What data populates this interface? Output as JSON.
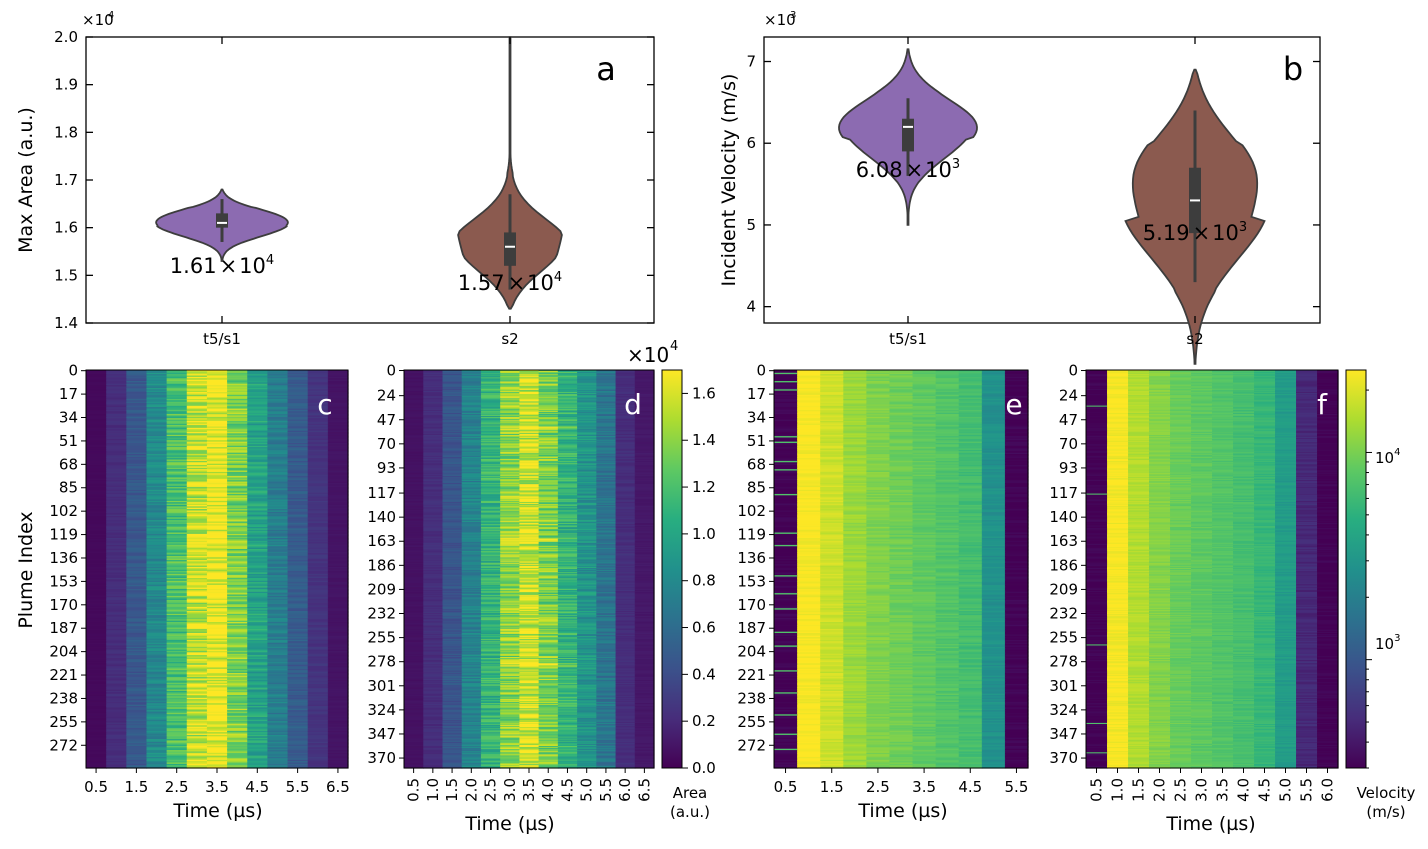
{
  "panel_a": {
    "letter": "a",
    "ylabel": "Max Area (a.u.)",
    "exponent_prefix": "×10",
    "exponent_power": "4",
    "ytick_labels": [
      "2.0",
      "1.9",
      "1.8",
      "1.7",
      "1.6",
      "1.5",
      "1.4"
    ],
    "xtick_labels": [
      "t5/s1",
      "s2"
    ],
    "annotations": [
      {
        "mantissa": "1.61",
        "times": "×",
        "base": "10",
        "power": "4"
      },
      {
        "mantissa": "1.57",
        "times": "×",
        "base": "10",
        "power": "4"
      }
    ]
  },
  "panel_b": {
    "letter": "b",
    "ylabel": "Incident Velocity (m/s)",
    "exponent_prefix": "×10",
    "exponent_power": "3",
    "ytick_labels": [
      "7",
      "6",
      "5",
      "4"
    ],
    "xtick_labels": [
      "t5/s1",
      "s2"
    ],
    "annotations": [
      {
        "mantissa": "6.08",
        "times": "×",
        "base": "10",
        "power": "3"
      },
      {
        "mantissa": "5.19",
        "times": "×",
        "base": "10",
        "power": "3"
      }
    ]
  },
  "panel_c": {
    "letter": "c",
    "ylabel": "Plume Index",
    "xlabel": "Time (µs)",
    "ytick_labels": [
      "0",
      "17",
      "34",
      "51",
      "68",
      "85",
      "102",
      "119",
      "136",
      "153",
      "170",
      "187",
      "204",
      "221",
      "238",
      "255",
      "272"
    ],
    "xtick_labels": [
      "0.5",
      "1.5",
      "2.5",
      "3.5",
      "4.5",
      "5.5",
      "6.5"
    ]
  },
  "panel_d": {
    "letter": "d",
    "xlabel": "Time (µs)",
    "ytick_labels": [
      "0",
      "24",
      "47",
      "70",
      "93",
      "117",
      "140",
      "163",
      "186",
      "209",
      "232",
      "255",
      "278",
      "301",
      "324",
      "347",
      "370"
    ],
    "xtick_labels": [
      "0.5",
      "1.0",
      "1.5",
      "2.0",
      "2.5",
      "3.0",
      "3.5",
      "4.0",
      "4.5",
      "5.0",
      "5.5",
      "6.0",
      "6.5"
    ]
  },
  "panel_e": {
    "letter": "e",
    "xlabel": "Time (µs)",
    "ytick_labels": [
      "0",
      "17",
      "34",
      "51",
      "68",
      "85",
      "102",
      "119",
      "136",
      "153",
      "170",
      "187",
      "204",
      "221",
      "238",
      "255",
      "272"
    ],
    "xtick_labels": [
      "0.5",
      "1.5",
      "2.5",
      "3.5",
      "4.5",
      "5.5"
    ]
  },
  "panel_f": {
    "letter": "f",
    "xlabel": "Time (µs)",
    "ytick_labels": [
      "0",
      "24",
      "47",
      "70",
      "93",
      "117",
      "140",
      "163",
      "186",
      "209",
      "232",
      "255",
      "278",
      "301",
      "324",
      "347",
      "370"
    ],
    "xtick_labels": [
      "0.5",
      "1.0",
      "1.5",
      "2.0",
      "2.5",
      "3.0",
      "3.5",
      "4.0",
      "4.5",
      "5.0",
      "5.5",
      "6.0"
    ]
  },
  "colorbar_area": {
    "multiplier": "×10",
    "multiplier_power": "4",
    "tick_labels": [
      "1.6",
      "1.4",
      "1.2",
      "1.0",
      "0.8",
      "0.6",
      "0.4",
      "0.2",
      "0.0"
    ],
    "title_line1": "Area",
    "title_line2": "(a.u.)"
  },
  "colorbar_velocity": {
    "tick_base": "10",
    "tick_powers": [
      "4",
      "3"
    ],
    "title_line1": "Velocity",
    "title_line2": "(m/s)"
  },
  "colors": {
    "violin_t5s1": "#8c6bb1",
    "violin_s2": "#8b5a4f",
    "violin_edge": "#3d3d3d",
    "box": "#3d3d3d",
    "median": "#ffffff",
    "viridis": [
      "#440154",
      "#472d7b",
      "#3b528b",
      "#2c728e",
      "#21918c",
      "#28ae80",
      "#5ec962",
      "#addc30",
      "#fde725"
    ]
  },
  "chart_data": [
    {
      "type": "violin",
      "panel": "a",
      "categories": [
        "t5/s1",
        "s2"
      ],
      "ylim": [
        14000,
        20000
      ],
      "series": [
        {
          "category": "t5/s1",
          "median": 16100,
          "q1": 16000,
          "q3": 16300,
          "whisker_low": 15700,
          "whisker_high": 16600,
          "min": 15300,
          "max": 16800,
          "mean_label": 16100
        },
        {
          "category": "s2",
          "median": 15600,
          "q1": 15200,
          "q3": 15900,
          "whisker_low": 14700,
          "whisker_high": 16700,
          "min": 14300,
          "max": 20000,
          "mean_label": 15700
        }
      ]
    },
    {
      "type": "violin",
      "panel": "b",
      "categories": [
        "t5/s1",
        "s2"
      ],
      "ylim": [
        3800,
        7300
      ],
      "series": [
        {
          "category": "t5/s1",
          "median": 6200,
          "q1": 5900,
          "q3": 6300,
          "whisker_low": 5600,
          "whisker_high": 6550,
          "min": 5000,
          "max": 7150,
          "mean_label": 6080
        },
        {
          "category": "s2",
          "median": 5300,
          "q1": 4900,
          "q3": 5700,
          "whisker_low": 4300,
          "whisker_high": 6400,
          "min": 3300,
          "max": 6900,
          "mean_label": 5190
        }
      ]
    },
    {
      "type": "heatmap",
      "panel": "c",
      "rows": 289,
      "time_us": [
        0.5,
        1.0,
        1.5,
        2.0,
        2.5,
        3.0,
        3.5,
        4.0,
        4.5,
        5.0,
        5.5,
        6.0,
        6.5
      ],
      "column_values": [
        400,
        2200,
        4700,
        8000,
        12000,
        15500,
        17000,
        13600,
        9800,
        7200,
        4900,
        2500,
        900
      ],
      "value_range": [
        0,
        17000
      ],
      "color_scale": "linear"
    },
    {
      "type": "heatmap",
      "panel": "d",
      "rows": 380,
      "time_us": [
        0.5,
        1.0,
        1.5,
        2.0,
        2.5,
        3.0,
        3.5,
        4.0,
        4.5,
        5.0,
        5.5,
        6.0,
        6.5
      ],
      "column_values": [
        800,
        2200,
        4500,
        7500,
        11000,
        14000,
        15800,
        13500,
        11000,
        8800,
        6600,
        2200,
        1100
      ],
      "value_range": [
        0,
        17000
      ],
      "color_scale": "linear"
    },
    {
      "type": "heatmap",
      "panel": "e",
      "rows": 289,
      "time_us": [
        0.5,
        1.0,
        1.5,
        2.0,
        2.5,
        3.0,
        3.5,
        4.0,
        4.5,
        5.0,
        5.5
      ],
      "column_values": [
        300,
        22000,
        16000,
        11500,
        9500,
        8500,
        7600,
        6800,
        5900,
        2600,
        300
      ],
      "value_range": [
        300,
        22000
      ],
      "color_scale": "log"
    },
    {
      "type": "heatmap",
      "panel": "f",
      "rows": 380,
      "time_us": [
        0.5,
        1.0,
        1.5,
        2.0,
        2.5,
        3.0,
        3.5,
        4.0,
        4.5,
        5.0,
        5.5,
        6.0
      ],
      "column_values": [
        300,
        24000,
        15000,
        11000,
        9000,
        8200,
        7400,
        6600,
        5600,
        3400,
        500,
        300
      ],
      "value_range": [
        300,
        25000
      ],
      "color_scale": "log"
    }
  ]
}
